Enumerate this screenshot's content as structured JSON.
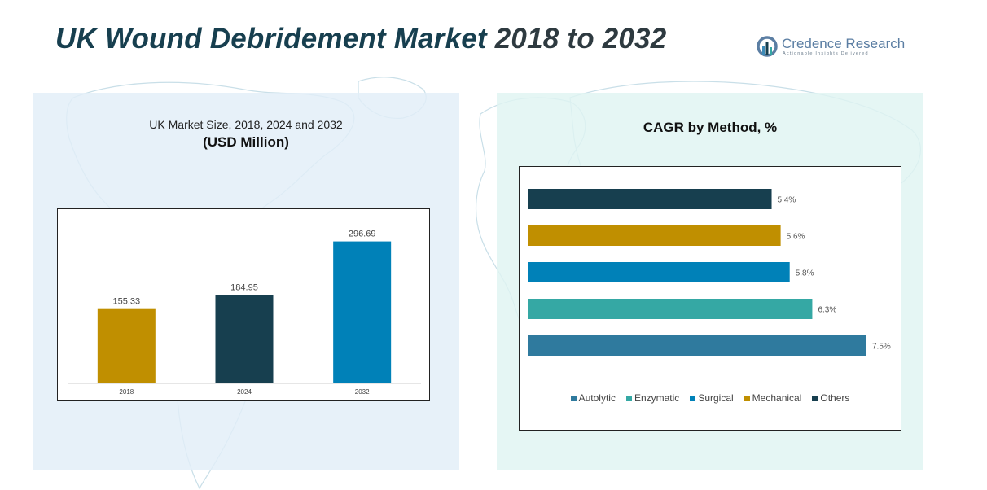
{
  "header": {
    "title_main": "UK Wound Debridement Market",
    "title_years": "2018 to 2032"
  },
  "logo": {
    "name": "Credence Research",
    "tagline": "Actionable Insights Delivered",
    "icon": "credence-logo-icon",
    "color": "#5b7ea3"
  },
  "colors": {
    "background_map": "#c9dfe8",
    "panel_left": "#e2eef8",
    "panel_right": "#dff4f1"
  },
  "left_panel": {
    "title": "UK Market Size, 2018, 2024 and 2032",
    "subtitle": "(USD Million)"
  },
  "right_panel": {
    "title": "CAGR by Method, %"
  },
  "chart_data": [
    {
      "type": "bar",
      "title": "UK Market Size, 2018, 2024 and 2032",
      "subtitle": "(USD Million)",
      "categories": [
        "2018",
        "2024",
        "2032"
      ],
      "values": [
        155.33,
        184.95,
        296.69
      ],
      "value_labels": [
        "155.33",
        "184.95",
        "296.69"
      ],
      "colors": [
        "#c08f00",
        "#173f4f",
        "#0081b8"
      ],
      "xlabel": "",
      "ylabel": "",
      "ylim": [
        0,
        330
      ],
      "grid": false,
      "legend": "none"
    },
    {
      "type": "bar",
      "orientation": "horizontal",
      "title": "CAGR by Method, %",
      "categories": [
        "Others",
        "Mechanical",
        "Surgical",
        "Enzymatic",
        "Autolytic"
      ],
      "values": [
        5.4,
        5.6,
        5.8,
        6.3,
        7.5
      ],
      "value_labels": [
        "5.4%",
        "5.6%",
        "5.8%",
        "6.3%",
        "7.5%"
      ],
      "colors": [
        "#173f4f",
        "#c08f00",
        "#0081b8",
        "#35a8a4",
        "#2f7a9e"
      ],
      "xlim": [
        0,
        7.9
      ],
      "grid": false,
      "legend": "bottom",
      "legend_entries": [
        {
          "label": "Autolytic",
          "color": "#2f7a9e"
        },
        {
          "label": "Enzymatic",
          "color": "#35a8a4"
        },
        {
          "label": "Surgical",
          "color": "#0081b8"
        },
        {
          "label": "Mechanical",
          "color": "#c08f00"
        },
        {
          "label": "Others",
          "color": "#173f4f"
        }
      ]
    }
  ]
}
